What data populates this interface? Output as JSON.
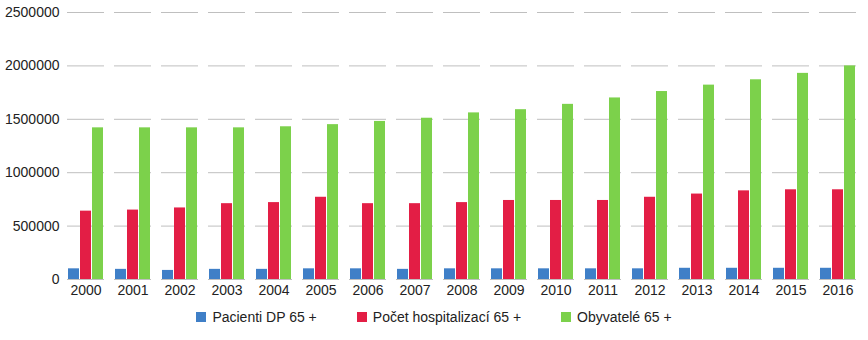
{
  "chart_data": {
    "type": "bar",
    "categories": [
      "2000",
      "2001",
      "2002",
      "2003",
      "2004",
      "2005",
      "2006",
      "2007",
      "2008",
      "2009",
      "2010",
      "2011",
      "2012",
      "2013",
      "2014",
      "2015",
      "2016"
    ],
    "series": [
      {
        "name": "Pacienti DP 65 +",
        "color": "#3f7fc7",
        "values": [
          100000,
          95000,
          85000,
          95000,
          95000,
          100000,
          100000,
          95000,
          100000,
          100000,
          100000,
          100000,
          100000,
          105000,
          105000,
          105000,
          105000
        ]
      },
      {
        "name": "Počet hospitalizací 65 +",
        "color": "#e31e45",
        "values": [
          640000,
          650000,
          670000,
          710000,
          720000,
          770000,
          710000,
          710000,
          720000,
          740000,
          740000,
          740000,
          770000,
          800000,
          830000,
          840000,
          840000
        ]
      },
      {
        "name": "Obyvatelé 65 +",
        "color": "#7cd14b",
        "values": [
          1420000,
          1420000,
          1420000,
          1420000,
          1430000,
          1450000,
          1480000,
          1510000,
          1560000,
          1590000,
          1640000,
          1700000,
          1760000,
          1820000,
          1870000,
          1930000,
          2000000
        ]
      }
    ],
    "ylim": [
      0,
      2500000
    ],
    "yticks": [
      0,
      500000,
      1000000,
      1500000,
      2000000,
      2500000
    ],
    "grid": true,
    "legend": "bottom"
  }
}
